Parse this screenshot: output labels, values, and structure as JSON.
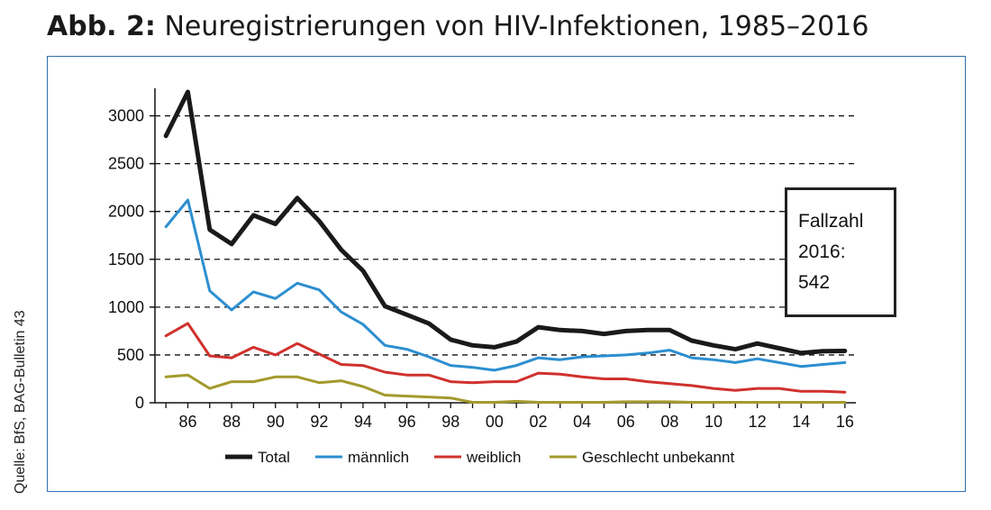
{
  "title": {
    "prefix": "Abb. 2:",
    "text": "Neuregistrierungen von HIV-Infektionen, 1985–2016"
  },
  "source": "Quelle: BfS, BAG-Bulletin 43",
  "note": {
    "line1": "Fallzahl",
    "line2": "2016:",
    "line3": "542"
  },
  "chart_data": {
    "type": "line",
    "title": "Neuregistrierungen von HIV-Infektionen, 1985–2016",
    "xlabel": "",
    "ylabel": "",
    "x": [
      1985,
      1986,
      1987,
      1988,
      1989,
      1990,
      1991,
      1992,
      1993,
      1994,
      1995,
      1996,
      1997,
      1998,
      1999,
      2000,
      2001,
      2002,
      2003,
      2004,
      2005,
      2006,
      2007,
      2008,
      2009,
      2010,
      2011,
      2012,
      2013,
      2014,
      2015,
      2016
    ],
    "xticks": [
      "86",
      "88",
      "90",
      "92",
      "94",
      "96",
      "98",
      "00",
      "02",
      "04",
      "06",
      "08",
      "10",
      "12",
      "14",
      "16"
    ],
    "xtick_years": [
      1986,
      1988,
      1990,
      1992,
      1994,
      1996,
      1998,
      2000,
      2002,
      2004,
      2006,
      2008,
      2010,
      2012,
      2014,
      2016
    ],
    "yticks": [
      "0",
      "500",
      "1000",
      "1500",
      "2000",
      "2500",
      "3000"
    ],
    "ytick_values": [
      0,
      500,
      1000,
      1500,
      2000,
      2500,
      3000
    ],
    "ylim": [
      0,
      3250
    ],
    "xlim": [
      1984.5,
      2016.5
    ],
    "grid": "horizontal dashed",
    "legend_position": "bottom",
    "series": [
      {
        "name": "Total",
        "color": "#1a1a1a",
        "values": [
          2790,
          3250,
          1810,
          1660,
          1960,
          1870,
          2140,
          1900,
          1600,
          1380,
          1010,
          920,
          830,
          660,
          600,
          580,
          640,
          790,
          760,
          750,
          720,
          750,
          760,
          760,
          650,
          600,
          560,
          620,
          570,
          520,
          540,
          542
        ]
      },
      {
        "name": "männlich",
        "color": "#2c8fd0",
        "values": [
          1840,
          2120,
          1170,
          970,
          1160,
          1090,
          1250,
          1180,
          950,
          820,
          600,
          560,
          480,
          390,
          370,
          340,
          390,
          470,
          450,
          480,
          490,
          500,
          520,
          550,
          470,
          450,
          420,
          460,
          420,
          380,
          400,
          420
        ]
      },
      {
        "name": "weiblich",
        "color": "#d0312d",
        "values": [
          700,
          830,
          490,
          470,
          580,
          500,
          620,
          510,
          400,
          390,
          320,
          290,
          290,
          220,
          210,
          220,
          220,
          310,
          300,
          270,
          250,
          250,
          220,
          200,
          180,
          150,
          130,
          150,
          150,
          120,
          120,
          110
        ]
      },
      {
        "name": "Geschlecht unbekannt",
        "color": "#a39a2c",
        "values": [
          270,
          290,
          150,
          220,
          220,
          270,
          270,
          210,
          230,
          170,
          80,
          70,
          60,
          50,
          5,
          5,
          15,
          5,
          5,
          5,
          5,
          10,
          10,
          10,
          5,
          5,
          5,
          5,
          5,
          5,
          5,
          5
        ]
      }
    ]
  }
}
